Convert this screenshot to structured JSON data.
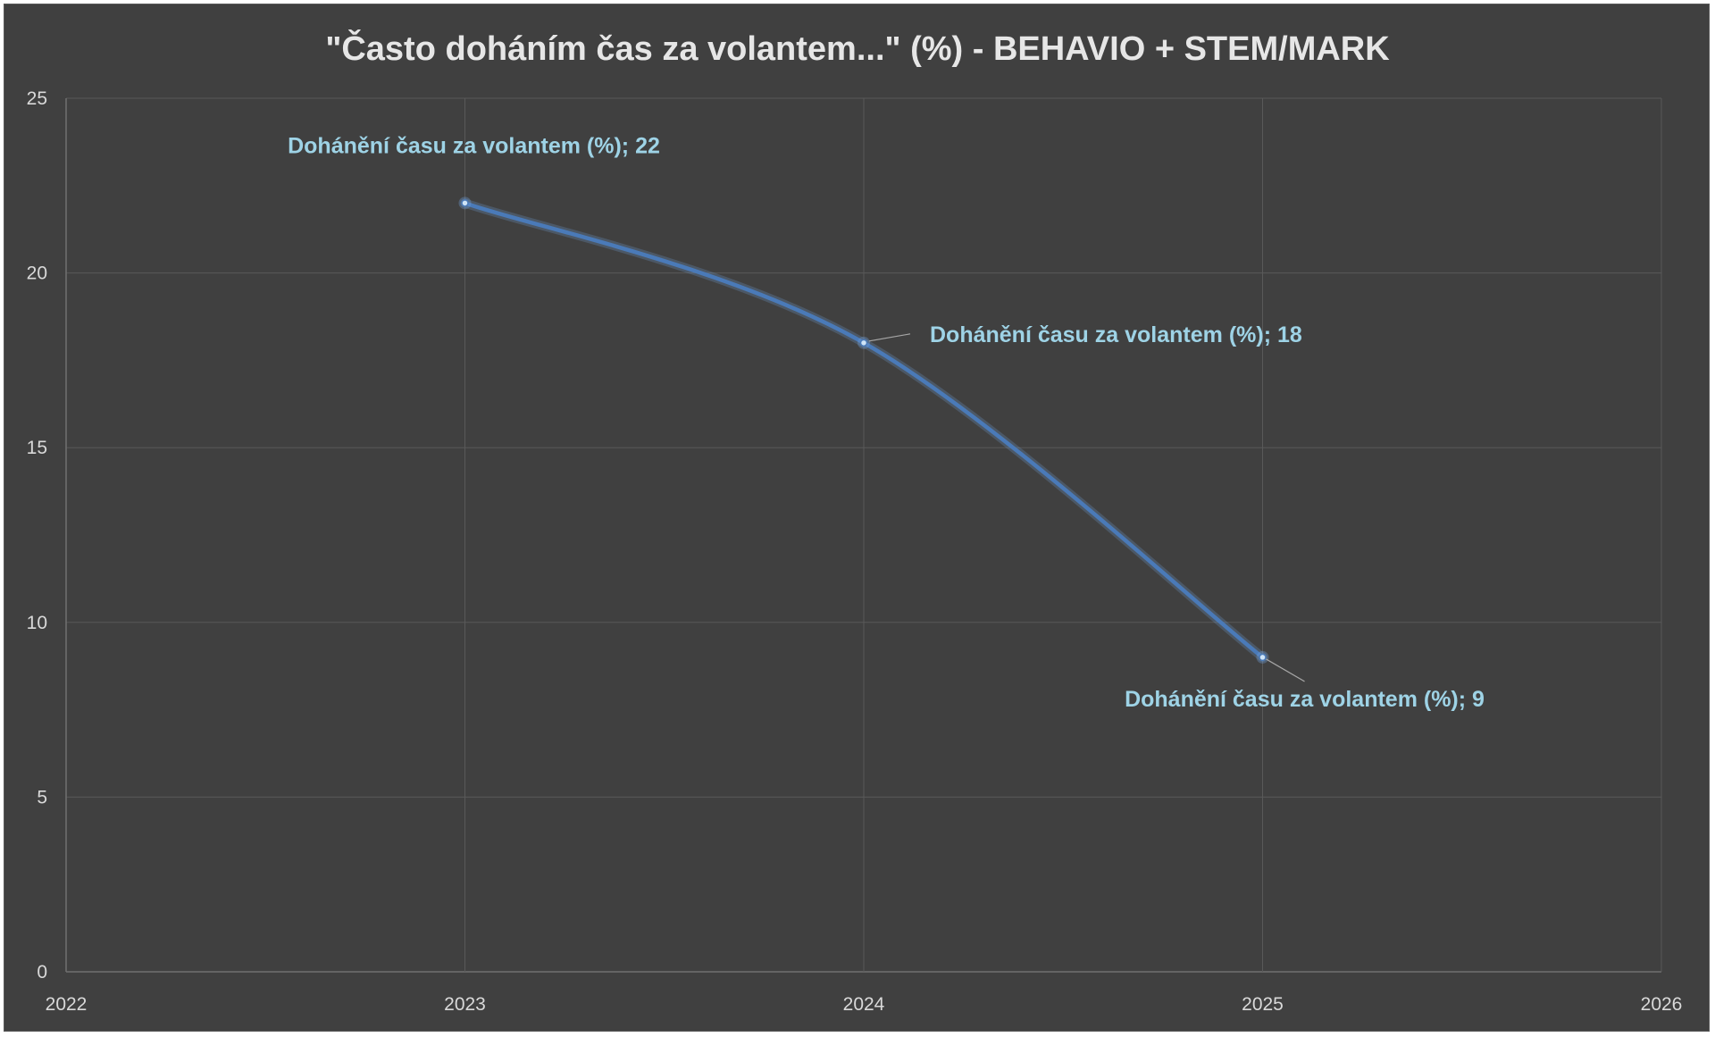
{
  "chart_data": {
    "type": "line",
    "title": "\"Často doháním čas za volantem...\" (%) - BEHAVIO + STEM/MARK",
    "xlabel": "",
    "ylabel": "",
    "xlim": [
      2022,
      2026
    ],
    "ylim": [
      0,
      25
    ],
    "x_ticks": [
      "2022",
      "2023",
      "2024",
      "2025",
      "2026"
    ],
    "y_ticks": [
      "0",
      "5",
      "10",
      "15",
      "20",
      "25"
    ],
    "grid": true,
    "smoothed": true,
    "series": [
      {
        "name": "Dohánění času za volantem (%)",
        "color": "#4a7ab8",
        "x": [
          2023,
          2024,
          2025
        ],
        "values": [
          22,
          18,
          9
        ],
        "labels": [
          "Dohánění času za volantem (%); 22",
          "Dohánění času za volantem (%); 18",
          "Dohánění času za volantem (%); 9"
        ]
      }
    ]
  }
}
